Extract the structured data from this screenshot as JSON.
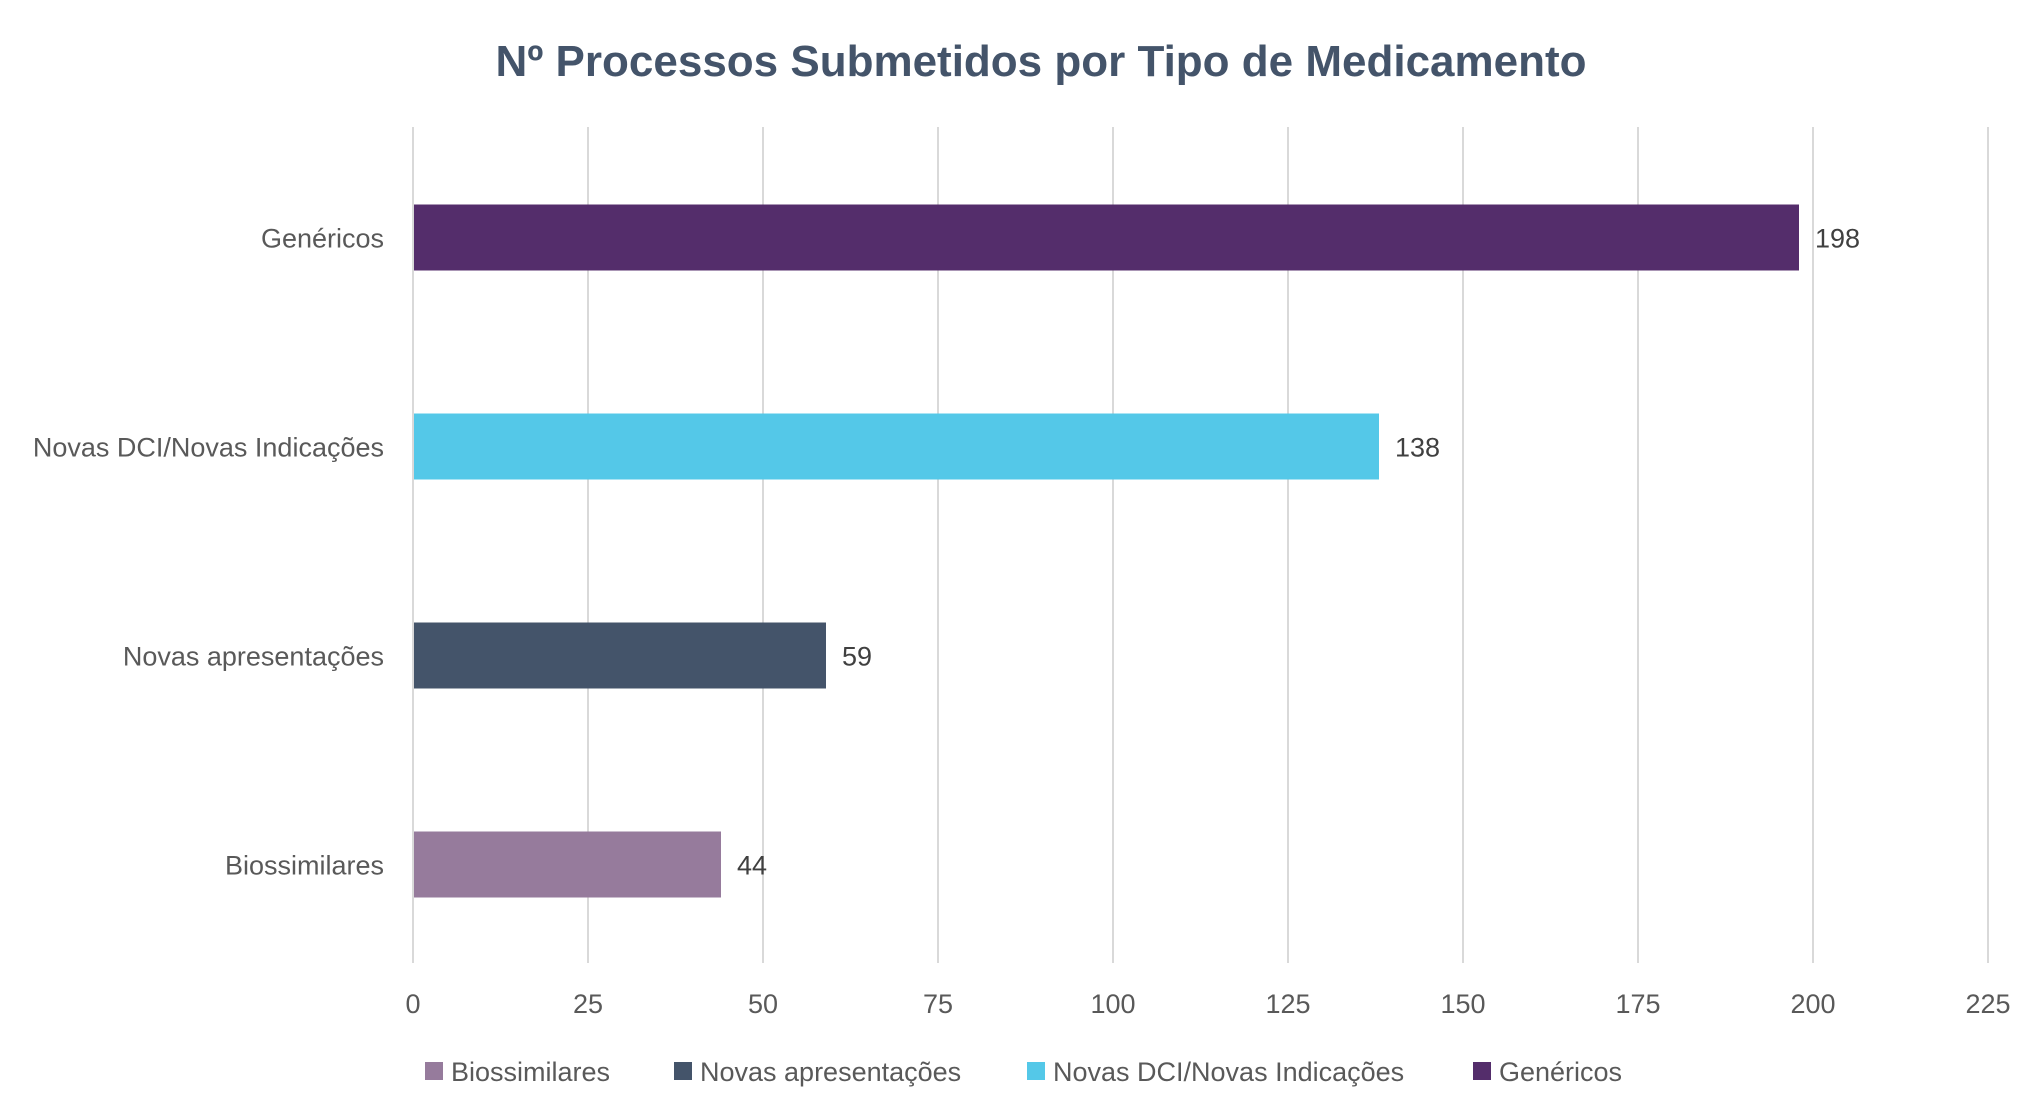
{
  "chart_data": {
    "type": "bar",
    "orientation": "horizontal",
    "title": "Nº Processos Submetidos por Tipo de Medicamento",
    "xlabel": "",
    "ylabel": "",
    "categories": [
      "Genéricos",
      "Novas DCI/Novas Indicações",
      "Novas apresentações",
      "Biossimilares"
    ],
    "values": [
      198,
      138,
      59,
      44
    ],
    "colors": [
      "#542d6b",
      "#54c8e8",
      "#44546a",
      "#967b9c"
    ],
    "xlim": [
      0,
      225
    ],
    "xticks": [
      0,
      25,
      50,
      75,
      100,
      125,
      150,
      175,
      200,
      225
    ],
    "xtick_labels": [
      "0",
      "25",
      "50",
      "75",
      "100",
      "125",
      "150",
      "175",
      "200",
      "225"
    ],
    "data_labels": [
      "198",
      "138",
      "59",
      "44"
    ],
    "grid": true,
    "legend": {
      "placement": "bottom",
      "entries": [
        {
          "label": "Biossimilares",
          "color": "#967b9c"
        },
        {
          "label": "Novas apresentações",
          "color": "#44546a"
        },
        {
          "label": "Novas DCI/Novas Indicações",
          "color": "#54c8e8"
        },
        {
          "label": "Genéricos",
          "color": "#542d6b"
        }
      ]
    }
  }
}
